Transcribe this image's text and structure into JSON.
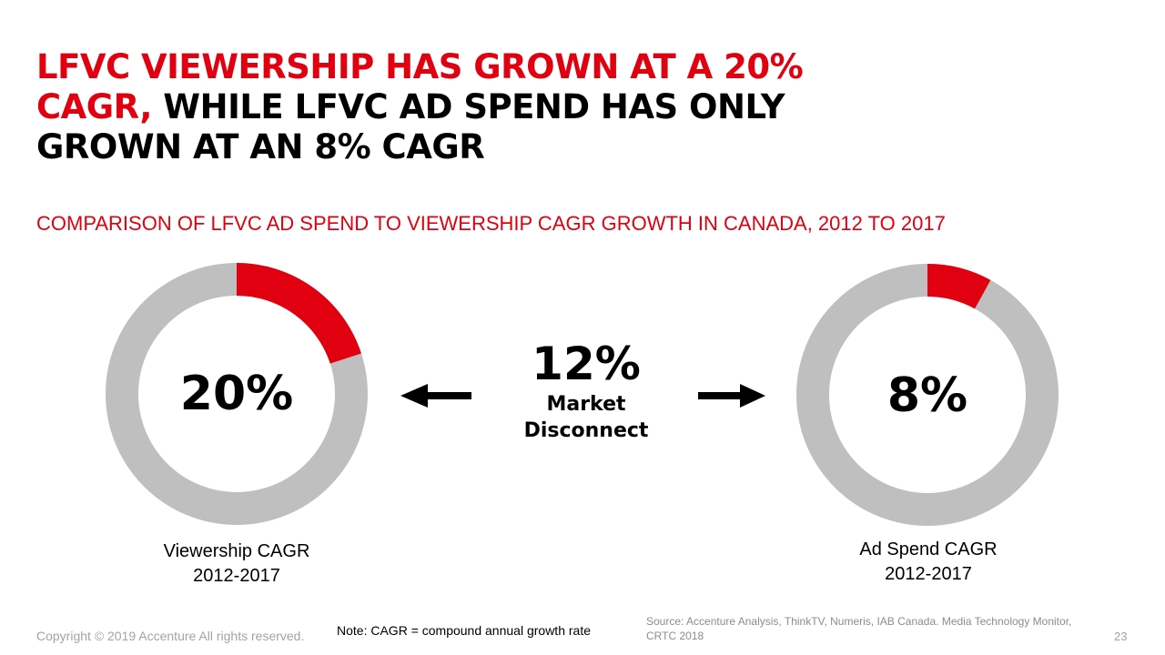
{
  "title": {
    "red_text": "LFVC VIEWERSHIP HAS GROWN AT A 20% CAGR,",
    "black_text": " WHILE LFVC AD SPEND HAS ONLY GROWN AT AN 8% CAGR"
  },
  "subtitle": "COMPARISON OF LFVC AD SPEND TO VIEWERSHIP CAGR GROWTH IN CANADA, 2012 TO 2017",
  "chart_data": [
    {
      "type": "pie",
      "value": 20,
      "display_value": "20%",
      "label_line1": "Viewership CAGR",
      "label_line2": "2012-2017",
      "highlight_color": "#e1000f",
      "track_color": "#bfbfbf"
    },
    {
      "type": "pie",
      "value": 8,
      "display_value": "8%",
      "label_line1": "Ad Spend CAGR",
      "label_line2": "2012-2017",
      "highlight_color": "#e1000f",
      "track_color": "#bfbfbf"
    }
  ],
  "center": {
    "value": "12%",
    "label": "Market Disconnect"
  },
  "footer": {
    "copyright": "Copyright © 2019 Accenture All rights reserved.",
    "note": "Note: CAGR = compound annual growth rate",
    "source": "Source: Accenture Analysis, ThinkTV, Numeris, IAB Canada. Media Technology Monitor, CRTC 2018",
    "page_number": "23"
  },
  "icons": {
    "left_arrow": "arrow-left-icon",
    "right_arrow": "arrow-right-icon"
  }
}
